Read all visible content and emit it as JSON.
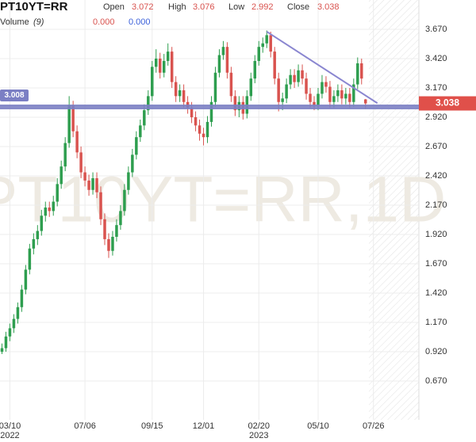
{
  "chart_data": {
    "type": "candlestick",
    "title": "PT10YT=RR",
    "watermark": "PT10YT=RR,1D",
    "ohlc_header": [
      {
        "label": "Open",
        "value": "3.072"
      },
      {
        "label": "High",
        "value": "3.076"
      },
      {
        "label": "Low",
        "value": "2.992"
      },
      {
        "label": "Close",
        "value": "3.038"
      }
    ],
    "volume_label": "Volume",
    "volume_period": "(9)",
    "volume_values": [
      {
        "value": "0.000",
        "color": "#d9534f"
      },
      {
        "value": "0.000",
        "color": "#3a5fd9"
      }
    ],
    "categories": [
      null,
      null,
      "03/10",
      null,
      null,
      null,
      null,
      null,
      null,
      null,
      null,
      null,
      null,
      null,
      null,
      null,
      null,
      null,
      null,
      null,
      null,
      "07/06",
      null,
      null,
      null,
      null,
      null,
      null,
      null,
      null,
      null,
      null,
      null,
      null,
      null,
      null,
      null,
      null,
      "09/15",
      null,
      null,
      null,
      null,
      null,
      null,
      null,
      null,
      null,
      null,
      null,
      null,
      "12/01",
      null,
      null,
      null,
      null,
      null,
      null,
      null,
      null,
      null,
      null,
      null,
      null,
      null,
      "02/20",
      null,
      null,
      null,
      null,
      null,
      null,
      null,
      null,
      null,
      null,
      null,
      null,
      null,
      null,
      "05/10",
      null,
      null,
      null,
      null,
      null,
      null,
      null,
      null,
      null,
      null,
      null,
      null,
      null,
      "07/26",
      null,
      null,
      null,
      null,
      null,
      null,
      null,
      null,
      null,
      null,
      null
    ],
    "year_labels": [
      "2022",
      "2023"
    ],
    "open": [
      0.92,
      0.95,
      1.05,
      1.12,
      1.2,
      1.3,
      1.45,
      1.62,
      1.8,
      1.88,
      1.95,
      2.08,
      2.15,
      2.12,
      2.2,
      2.35,
      2.5,
      2.7,
      3.02,
      2.8,
      2.62,
      2.45,
      2.38,
      2.3,
      2.4,
      2.28,
      2.05,
      1.88,
      1.78,
      1.9,
      2.0,
      2.12,
      2.3,
      2.45,
      2.6,
      2.75,
      2.85,
      2.98,
      3.1,
      3.35,
      3.42,
      3.3,
      3.4,
      3.48,
      3.22,
      3.1,
      3.15,
      3.05,
      3.0,
      2.92,
      2.85,
      2.78,
      2.75,
      2.88,
      3.05,
      3.3,
      3.45,
      3.52,
      3.3,
      3.1,
      2.98,
      3.05,
      2.95,
      3.1,
      3.25,
      3.4,
      3.52,
      3.55,
      3.62,
      3.48,
      3.25,
      3.05,
      3.08,
      3.2,
      3.28,
      3.22,
      3.32,
      3.25,
      3.12,
      3.05,
      3.02,
      3.12,
      3.22,
      3.18,
      3.05,
      3.1,
      3.15,
      3.08,
      3.12,
      3.05,
      3.2,
      3.38,
      3.072,
      null,
      null,
      null,
      null,
      null,
      null,
      null,
      null,
      null,
      null,
      null,
      null,
      null
    ],
    "high": [
      0.99,
      1.09,
      1.16,
      1.24,
      1.34,
      1.49,
      1.66,
      1.84,
      1.93,
      2.0,
      2.13,
      2.2,
      2.2,
      2.25,
      2.4,
      2.55,
      2.75,
      3.1,
      3.06,
      2.85,
      2.67,
      2.5,
      2.43,
      2.45,
      2.45,
      2.33,
      2.1,
      1.93,
      1.95,
      2.05,
      2.17,
      2.35,
      2.5,
      2.65,
      2.8,
      2.9,
      3.03,
      3.15,
      3.4,
      3.5,
      3.47,
      3.46,
      3.55,
      3.52,
      3.27,
      3.2,
      3.2,
      3.1,
      3.05,
      2.97,
      2.9,
      2.83,
      2.93,
      3.1,
      3.35,
      3.5,
      3.57,
      3.56,
      3.35,
      3.15,
      3.1,
      3.1,
      3.15,
      3.3,
      3.45,
      3.57,
      3.6,
      3.66,
      3.65,
      3.52,
      3.3,
      3.13,
      3.25,
      3.33,
      3.33,
      3.37,
      3.37,
      3.3,
      3.17,
      3.1,
      3.17,
      3.28,
      3.27,
      3.23,
      3.15,
      3.2,
      3.2,
      3.17,
      3.17,
      3.25,
      3.43,
      3.42,
      3.076,
      null,
      null,
      null,
      null,
      null,
      null,
      null,
      null,
      null,
      null,
      null,
      null,
      null
    ],
    "low": [
      0.9,
      0.92,
      1.01,
      1.08,
      1.16,
      1.26,
      1.41,
      1.58,
      1.75,
      1.83,
      1.91,
      2.03,
      2.07,
      2.08,
      2.16,
      2.31,
      2.46,
      2.66,
      2.75,
      2.57,
      2.4,
      2.33,
      2.25,
      2.26,
      2.23,
      2.0,
      1.83,
      1.72,
      1.74,
      1.86,
      1.96,
      2.08,
      2.26,
      2.41,
      2.56,
      2.71,
      2.81,
      2.94,
      3.06,
      3.3,
      3.25,
      3.26,
      3.36,
      3.17,
      3.05,
      3.05,
      3.0,
      2.95,
      2.87,
      2.8,
      2.72,
      2.68,
      2.7,
      2.84,
      3.01,
      3.26,
      3.41,
      3.25,
      3.05,
      2.93,
      2.92,
      2.9,
      2.91,
      3.06,
      3.21,
      3.36,
      3.47,
      3.51,
      3.43,
      3.2,
      2.97,
      2.98,
      3.04,
      3.16,
      3.17,
      3.18,
      3.2,
      3.07,
      3.0,
      2.98,
      2.98,
      3.08,
      3.13,
      3.0,
      3.0,
      3.05,
      3.03,
      3.03,
      3.0,
      3.01,
      3.16,
      3.2,
      2.992,
      null,
      null,
      null,
      null,
      null,
      null,
      null,
      null,
      null,
      null,
      null,
      null,
      null
    ],
    "close": [
      0.95,
      1.05,
      1.12,
      1.2,
      1.3,
      1.45,
      1.62,
      1.8,
      1.88,
      1.95,
      2.08,
      2.15,
      2.12,
      2.2,
      2.35,
      2.5,
      2.7,
      3.02,
      2.8,
      2.62,
      2.45,
      2.38,
      2.3,
      2.4,
      2.28,
      2.05,
      1.88,
      1.78,
      1.9,
      2.0,
      2.12,
      2.3,
      2.45,
      2.6,
      2.75,
      2.85,
      2.98,
      3.1,
      3.35,
      3.42,
      3.3,
      3.4,
      3.48,
      3.22,
      3.1,
      3.15,
      3.05,
      3.0,
      2.92,
      2.85,
      2.78,
      2.75,
      2.88,
      3.05,
      3.3,
      3.45,
      3.52,
      3.3,
      3.1,
      2.98,
      3.05,
      2.95,
      3.1,
      3.25,
      3.4,
      3.52,
      3.55,
      3.62,
      3.48,
      3.25,
      3.05,
      3.08,
      3.2,
      3.28,
      3.22,
      3.32,
      3.25,
      3.12,
      3.05,
      3.02,
      3.12,
      3.22,
      3.18,
      3.05,
      3.1,
      3.15,
      3.08,
      3.12,
      3.05,
      3.2,
      3.38,
      3.25,
      3.038,
      null,
      null,
      null,
      null,
      null,
      null,
      null,
      null,
      null,
      null,
      null,
      null,
      null
    ],
    "up_color": "#2e9e4f",
    "down_color": "#d9534f",
    "ylim": [
      0.339,
      3.92
    ],
    "yticks": [
      {
        "value": 3.67,
        "label": "3.670"
      },
      {
        "value": 3.42,
        "label": "3.420"
      },
      {
        "value": 3.17,
        "label": "3.170"
      },
      {
        "value": 2.92,
        "label": "2.920"
      },
      {
        "value": 2.67,
        "label": "2.670"
      },
      {
        "value": 2.42,
        "label": "2.420"
      },
      {
        "value": 2.17,
        "label": "2.170"
      },
      {
        "value": 1.92,
        "label": "1.920"
      },
      {
        "value": 1.67,
        "label": "1.670"
      },
      {
        "value": 1.42,
        "label": "1.420"
      },
      {
        "value": 1.17,
        "label": "1.170"
      },
      {
        "value": 0.92,
        "label": "0.920"
      },
      {
        "value": 0.67,
        "label": "0.670"
      }
    ],
    "grid": true,
    "level_line": {
      "value": 3.008,
      "color": "#7b7fc4"
    },
    "last_price": {
      "value": 3.038,
      "color": "#e0504a"
    },
    "trendline": {
      "x": [
        67,
        95
      ],
      "y": [
        3.65,
        3.04
      ],
      "color": "#8a86d0"
    }
  }
}
